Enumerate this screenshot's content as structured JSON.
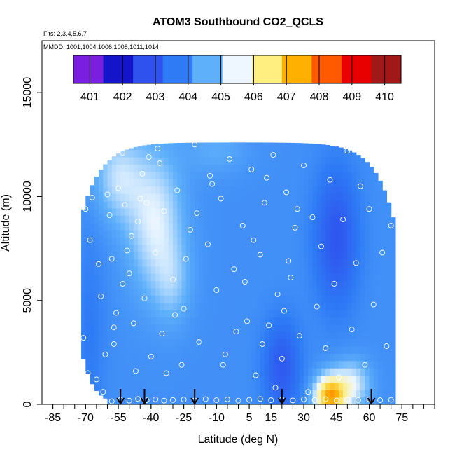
{
  "chart_data": {
    "type": "heatmap",
    "title": "ATOM3 Southbound CO2_QCLS",
    "subtitle_flights": "Flts: 2,3,4,5,6,7",
    "subtitle_dates": "MMDD: 1001,1004,1006,1008,1011,1014",
    "xlabel": "Latitude (deg N)",
    "ylabel": "Altitude (m)",
    "xlim": [
      -90,
      90
    ],
    "ylim": [
      0,
      17500
    ],
    "x_ticks": [
      -85,
      -70,
      -55,
      -40,
      -25,
      -10,
      5,
      15,
      30,
      45,
      60,
      75
    ],
    "y_ticks": [
      0,
      5000,
      10000,
      15000
    ],
    "colorbar": {
      "ticks": [
        "401",
        "402",
        "403",
        "404",
        "405",
        "406",
        "407",
        "408",
        "409",
        "410"
      ],
      "range": [
        400.5,
        410.5
      ],
      "colors": [
        "#7a1fe0",
        "#1414c8",
        "#2f52ee",
        "#2e7bf5",
        "#5fb0fb",
        "#eef7ff",
        "#ffef80",
        "#ffb000",
        "#ff5a00",
        "#e80000",
        "#a01818"
      ]
    },
    "field": {
      "base": 403.9,
      "lat_range": [
        -72,
        71
      ],
      "alt_top": 12600,
      "anomalies": [
        {
          "lat": -38,
          "alt": 8800,
          "slat": 9,
          "salt": 2400,
          "amp": 1.5
        },
        {
          "lat": -55,
          "alt": 11000,
          "slat": 8,
          "salt": 1500,
          "amp": 1.2
        },
        {
          "lat": -30,
          "alt": 5800,
          "slat": 6,
          "salt": 1400,
          "amp": 0.7
        },
        {
          "lat": -10,
          "alt": 12200,
          "slat": 10,
          "salt": 800,
          "amp": 0.5
        },
        {
          "lat": 45,
          "alt": 8000,
          "slat": 7,
          "salt": 2300,
          "amp": -1.3
        },
        {
          "lat": 20,
          "alt": 1800,
          "slat": 6,
          "salt": 1600,
          "amp": -1.2
        },
        {
          "lat": -68,
          "alt": 3500,
          "slat": 5,
          "salt": 3500,
          "amp": -0.4
        },
        {
          "lat": 42,
          "alt": 400,
          "slat": 5,
          "salt": 700,
          "amp": 3.6
        },
        {
          "lat": 52,
          "alt": 1000,
          "slat": 6,
          "salt": 800,
          "amp": 1.5
        }
      ]
    },
    "samples": [
      [
        -70,
        9400
      ],
      [
        -68,
        7900
      ],
      [
        -67,
        9950
      ],
      [
        -64,
        6750
      ],
      [
        -63,
        5200
      ],
      [
        -60,
        10100
      ],
      [
        -59,
        9100
      ],
      [
        -58,
        7000
      ],
      [
        -57,
        2900
      ],
      [
        -56,
        4400
      ],
      [
        -55,
        10400
      ],
      [
        -53,
        12100
      ],
      [
        -52,
        9600
      ],
      [
        -51,
        7400
      ],
      [
        -50,
        6300
      ],
      [
        -48,
        3900
      ],
      [
        -47,
        1600
      ],
      [
        -46,
        8800
      ],
      [
        -44,
        11100
      ],
      [
        -43,
        5100
      ],
      [
        -42,
        9700
      ],
      [
        -40,
        2300
      ],
      [
        -38,
        7300
      ],
      [
        -36,
        11600
      ],
      [
        -35,
        3400
      ],
      [
        -34,
        9300
      ],
      [
        -30,
        6000
      ],
      [
        -28,
        10300
      ],
      [
        -26,
        1900
      ],
      [
        -25,
        4600
      ],
      [
        -22,
        8400
      ],
      [
        -20,
        12500
      ],
      [
        -18,
        3000
      ],
      [
        -14,
        7700
      ],
      [
        -12,
        10600
      ],
      [
        -10,
        5500
      ],
      [
        -8,
        9900
      ],
      [
        -6,
        2400
      ],
      [
        -4,
        11800
      ],
      [
        -2,
        6500
      ],
      [
        2,
        8600
      ],
      [
        4,
        4000
      ],
      [
        6,
        11300
      ],
      [
        8,
        1400
      ],
      [
        10,
        7200
      ],
      [
        12,
        9700
      ],
      [
        14,
        3800
      ],
      [
        16,
        12000
      ],
      [
        18,
        5300
      ],
      [
        20,
        2200
      ],
      [
        22,
        10200
      ],
      [
        24,
        6100
      ],
      [
        26,
        8500
      ],
      [
        28,
        3300
      ],
      [
        30,
        11500
      ],
      [
        32,
        600
      ],
      [
        34,
        9000
      ],
      [
        36,
        4700
      ],
      [
        38,
        7600
      ],
      [
        40,
        2700
      ],
      [
        42,
        10800
      ],
      [
        44,
        5800
      ],
      [
        46,
        1300
      ],
      [
        48,
        8900
      ],
      [
        50,
        12200
      ],
      [
        52,
        3600
      ],
      [
        54,
        6800
      ],
      [
        56,
        10500
      ],
      [
        58,
        1900
      ],
      [
        60,
        9400
      ],
      [
        62,
        4800
      ],
      [
        64,
        11900
      ],
      [
        66,
        7300
      ],
      [
        68,
        2800
      ],
      [
        70,
        8600
      ],
      [
        -71,
        3200
      ],
      [
        -69,
        1500
      ],
      [
        -66,
        300
      ],
      [
        -62,
        600
      ],
      [
        -58,
        150
      ],
      [
        -54,
        220
      ],
      [
        -50,
        180
      ],
      [
        -46,
        260
      ],
      [
        -42,
        200
      ],
      [
        -38,
        240
      ],
      [
        -34,
        180
      ],
      [
        -30,
        210
      ],
      [
        -25,
        230
      ],
      [
        -20,
        190
      ],
      [
        -15,
        250
      ],
      [
        -10,
        200
      ],
      [
        -5,
        240
      ],
      [
        0,
        180
      ],
      [
        5,
        220
      ],
      [
        10,
        260
      ],
      [
        15,
        200
      ],
      [
        20,
        230
      ],
      [
        25,
        190
      ],
      [
        30,
        240
      ],
      [
        35,
        210
      ],
      [
        40,
        250
      ],
      [
        45,
        190
      ],
      [
        50,
        230
      ],
      [
        55,
        210
      ],
      [
        60,
        240
      ],
      [
        65,
        200
      ],
      [
        70,
        220
      ],
      [
        -65,
        1200
      ],
      [
        -61,
        2400
      ],
      [
        -57,
        3700
      ],
      [
        -53,
        5800
      ],
      [
        -49,
        8100
      ],
      [
        -45,
        9900
      ],
      [
        -41,
        11900
      ],
      [
        -37,
        12300
      ],
      [
        -33,
        1500
      ],
      [
        -29,
        4300
      ],
      [
        -24,
        7000
      ],
      [
        -19,
        9200
      ],
      [
        -13,
        11000
      ],
      [
        -7,
        1900
      ],
      [
        -1,
        3500
      ],
      [
        3,
        5900
      ],
      [
        7,
        7900
      ],
      [
        11,
        2900
      ],
      [
        13,
        10900
      ],
      [
        17,
        800
      ],
      [
        21,
        4500
      ],
      [
        23,
        6900
      ],
      [
        27,
        9400
      ]
    ],
    "flight_markers_lat": [
      -54,
      -43,
      -20,
      20,
      61
    ]
  }
}
